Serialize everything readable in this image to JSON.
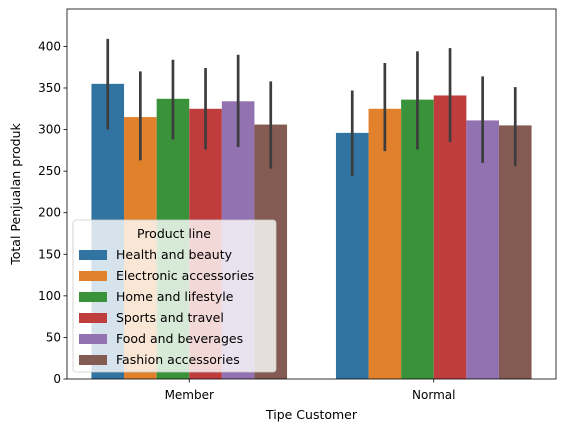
{
  "chart_data": {
    "type": "bar",
    "xlabel": "Tipe Customer",
    "ylabel": "Total Penjualan produk",
    "ylim": [
      0,
      445
    ],
    "yticks": [
      0,
      50,
      100,
      150,
      200,
      250,
      300,
      350,
      400
    ],
    "categories": [
      "Member",
      "Normal"
    ],
    "legend": {
      "title": "Product line",
      "placement": "lower-left"
    },
    "series": [
      {
        "name": "Health and beauty",
        "color": "#3274a1",
        "values": [
          355,
          296
        ],
        "ci_low": [
          300,
          244
        ],
        "ci_high": [
          409,
          347
        ]
      },
      {
        "name": "Electronic accessories",
        "color": "#e1812c",
        "values": [
          315,
          325
        ],
        "ci_low": [
          263,
          274
        ],
        "ci_high": [
          370,
          380
        ]
      },
      {
        "name": "Home and lifestyle",
        "color": "#3a923a",
        "values": [
          337,
          336
        ],
        "ci_low": [
          288,
          276
        ],
        "ci_high": [
          384,
          394
        ]
      },
      {
        "name": "Sports and travel",
        "color": "#c03d3e",
        "values": [
          325,
          341
        ],
        "ci_low": [
          276,
          285
        ],
        "ci_high": [
          374,
          398
        ]
      },
      {
        "name": "Food and beverages",
        "color": "#9372b2",
        "values": [
          334,
          311
        ],
        "ci_low": [
          279,
          260
        ],
        "ci_high": [
          390,
          364
        ]
      },
      {
        "name": "Fashion accessories",
        "color": "#845b53",
        "values": [
          306,
          305
        ],
        "ci_low": [
          253,
          256
        ],
        "ci_high": [
          358,
          351
        ]
      }
    ]
  }
}
